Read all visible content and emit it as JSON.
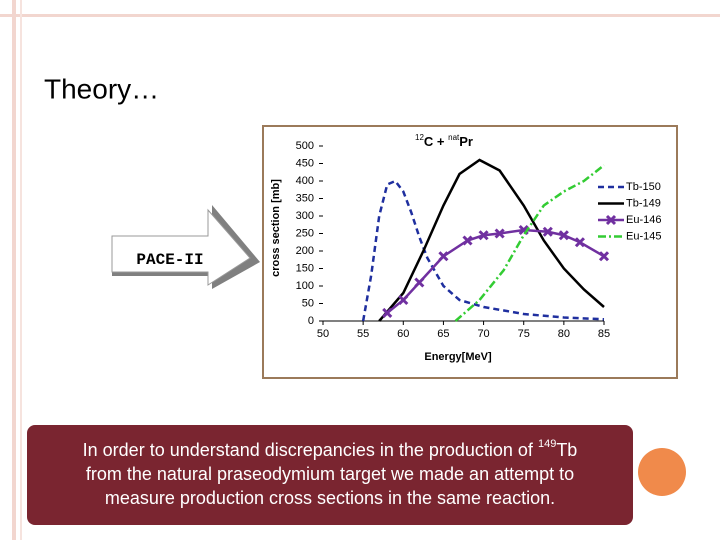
{
  "slide": {
    "title": "Theory…",
    "arrow_label": "PACE-II",
    "note_parts": [
      "In order to understand discrepancies in the production of ",
      "149",
      "Tb",
      "from the natural praseodymium target we made an attempt to",
      "measure production cross sections in the same reaction."
    ]
  },
  "chart_data": {
    "type": "line",
    "title_parts": [
      "12",
      "C + ",
      "nat",
      "Pr"
    ],
    "x_label": "Energy[MeV]",
    "y_label": "cross section [mb]",
    "xlim": [
      50,
      85
    ],
    "xticks": [
      50,
      55,
      60,
      65,
      70,
      75,
      80,
      85
    ],
    "ylim": [
      0,
      500
    ],
    "yticks": [
      0,
      50,
      100,
      150,
      200,
      250,
      300,
      350,
      400,
      450,
      500
    ],
    "legend": "right",
    "series": [
      {
        "name": "Tb-150",
        "color": "#1f2f9f",
        "style": "dashed",
        "marker": false,
        "x": [
          55,
          56,
          57,
          58,
          59,
          60,
          61,
          62,
          63,
          65,
          67,
          70,
          75,
          80,
          85
        ],
        "values": [
          0,
          130,
          300,
          390,
          400,
          370,
          310,
          240,
          180,
          100,
          60,
          40,
          20,
          10,
          5
        ]
      },
      {
        "name": "Tb-149",
        "color": "#000000",
        "style": "solid",
        "marker": false,
        "x": [
          57,
          60,
          62.5,
          65,
          67,
          69.5,
          72,
          75,
          77.5,
          80,
          82.5,
          85
        ],
        "values": [
          0,
          80,
          200,
          330,
          420,
          460,
          430,
          330,
          230,
          150,
          90,
          40
        ]
      },
      {
        "name": "Eu-146",
        "color": "#7030a0",
        "style": "solid",
        "marker": true,
        "x": [
          58,
          60,
          62,
          65,
          68,
          70,
          72,
          75,
          78,
          80,
          82,
          85
        ],
        "values": [
          23,
          60,
          110,
          185,
          230,
          245,
          250,
          260,
          255,
          245,
          225,
          185
        ]
      },
      {
        "name": "Eu-145",
        "color": "#33cc33",
        "style": "dashdot",
        "marker": false,
        "x": [
          66.5,
          69.5,
          72.5,
          75,
          77.5,
          80,
          82.5,
          85
        ],
        "values": [
          0,
          60,
          145,
          245,
          330,
          370,
          400,
          445
        ]
      }
    ]
  }
}
